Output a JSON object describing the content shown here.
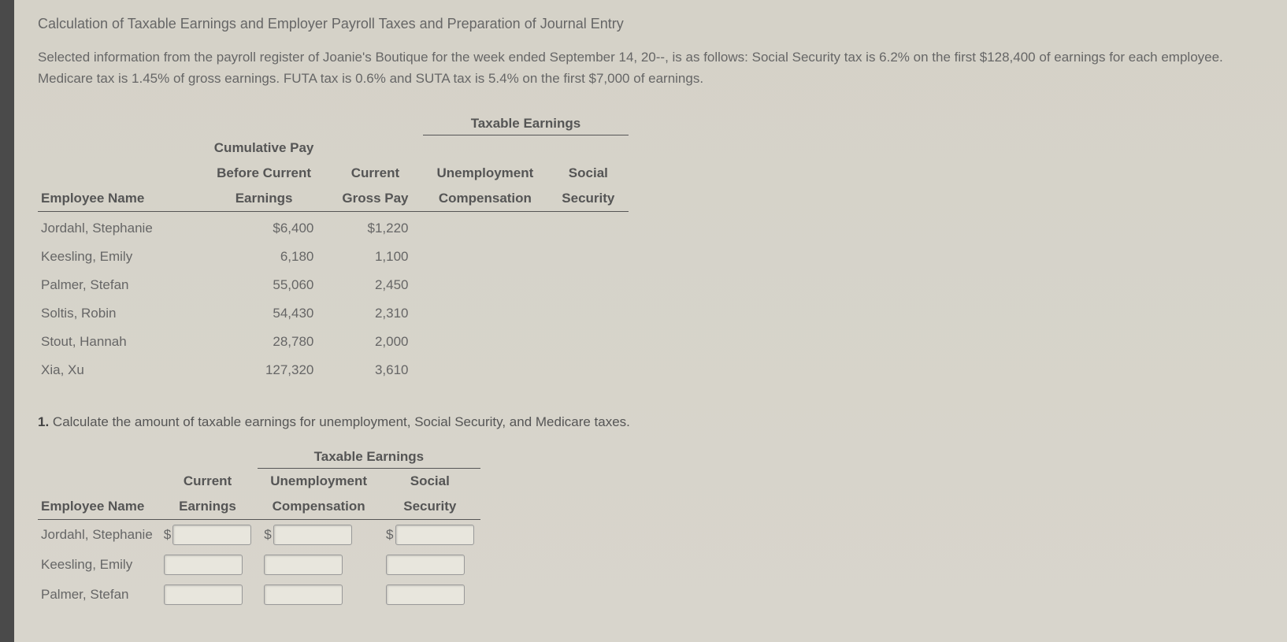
{
  "title": "Calculation of Taxable Earnings and Employer Payroll Taxes and Preparation of Journal Entry",
  "description": "Selected information from the payroll register of Joanie's Boutique for the week ended September 14, 20--, is as follows: Social Security tax is 6.2% on the first $128,400 of earnings for each employee. Medicare tax is 1.45% of gross earnings. FUTA tax is 0.6% and SUTA tax is 5.4% on the first $7,000 of earnings.",
  "main_table": {
    "spanning_header": "Taxable Earnings",
    "columns": {
      "employee_name": "Employee Name",
      "cumulative_pay_l1": "Cumulative Pay",
      "cumulative_pay_l2": "Before Current",
      "cumulative_pay_l3": "Earnings",
      "current_gross_l1": "Current",
      "current_gross_l2": "Gross Pay",
      "unemployment_l1": "Unemployment",
      "unemployment_l2": "Compensation",
      "social_l1": "Social",
      "social_l2": "Security"
    },
    "rows": [
      {
        "name": "Jordahl, Stephanie",
        "cumulative": "$6,400",
        "gross": "$1,220"
      },
      {
        "name": "Keesling, Emily",
        "cumulative": "6,180",
        "gross": "1,100"
      },
      {
        "name": "Palmer, Stefan",
        "cumulative": "55,060",
        "gross": "2,450"
      },
      {
        "name": "Soltis, Robin",
        "cumulative": "54,430",
        "gross": "2,310"
      },
      {
        "name": "Stout, Hannah",
        "cumulative": "28,780",
        "gross": "2,000"
      },
      {
        "name": "Xia, Xu",
        "cumulative": "127,320",
        "gross": "3,610"
      }
    ]
  },
  "question": {
    "number": "1.",
    "text": "Calculate the amount of taxable earnings for unemployment, Social Security, and Medicare taxes."
  },
  "answer_table": {
    "spanning_header": "Taxable Earnings",
    "columns": {
      "employee_name": "Employee Name",
      "current_l1": "Current",
      "current_l2": "Earnings",
      "unemployment_l1": "Unemployment",
      "unemployment_l2": "Compensation",
      "social_l1": "Social",
      "social_l2": "Security"
    },
    "rows": [
      {
        "name": "Jordahl, Stephanie",
        "show_dollar": true
      },
      {
        "name": "Keesling, Emily",
        "show_dollar": false
      },
      {
        "name": "Palmer, Stefan",
        "show_dollar": false
      }
    ]
  },
  "colors": {
    "background": "#d5d2c8",
    "text_primary": "#666",
    "text_heading": "#555",
    "border": "#555",
    "input_bg": "#e8e6dd",
    "input_border": "#999"
  }
}
